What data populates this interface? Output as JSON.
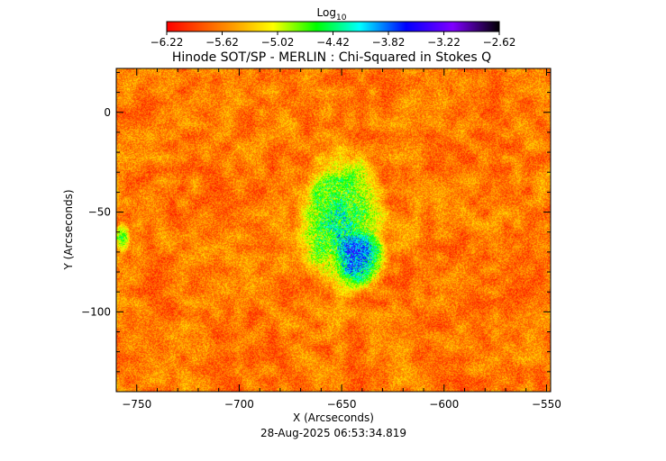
{
  "chart_data": {
    "type": "heatmap",
    "title": "Hinode SOT/SP - MERLIN : Chi-Squared in Stokes Q",
    "xlabel": "X (Arcseconds)",
    "ylabel": "Y (Arcseconds)",
    "timestamp": "28-Aug-2025 06:53:34.819",
    "xlim": [
      -760,
      -548
    ],
    "ylim": [
      -140,
      22
    ],
    "x_ticks": [
      -750,
      -700,
      -650,
      -600,
      -550
    ],
    "y_ticks": [
      0,
      -50,
      -100
    ],
    "colorbar": {
      "label_base": "Log",
      "label_sub": "10",
      "range": [
        -6.22,
        -2.62
      ],
      "ticks": [
        "-6.22",
        "-5.62",
        "-5.02",
        "-4.42",
        "-3.82",
        "-3.22",
        "-2.62"
      ],
      "colormap": [
        "#ff0000",
        "#ffff00",
        "#00ff00",
        "#00ffff",
        "#0000ff",
        "#7f00ff",
        "#000000"
      ]
    },
    "background_log10": -5.65,
    "features": [
      {
        "name": "active region",
        "center_x": -650,
        "center_y": -55,
        "peak_log10": -4.5
      },
      {
        "name": "core",
        "center_x": -640,
        "center_y": -75,
        "peak_log10": -4.1
      },
      {
        "name": "left-edge patch",
        "center_x": -757,
        "center_y": -63,
        "peak_log10": -4.6
      }
    ]
  }
}
